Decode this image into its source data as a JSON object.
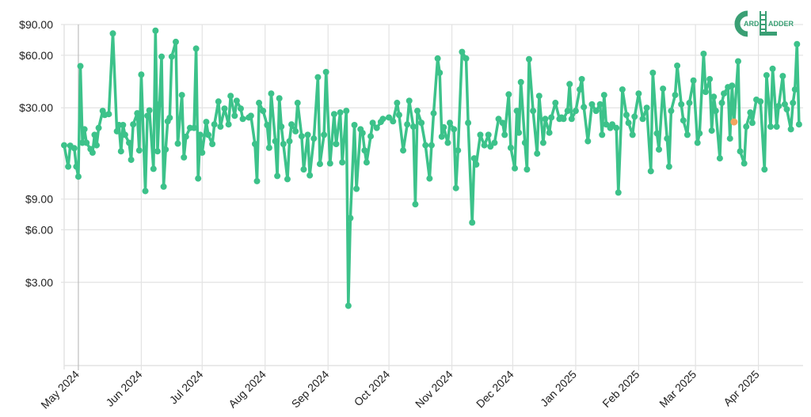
{
  "logo": {
    "text": "CARD LADDER"
  },
  "colors": {
    "line": "#3cc28a",
    "highlight": "#f2a55e",
    "grid": "#e3e3e3"
  },
  "chart_data": {
    "type": "line",
    "title": "",
    "xlabel": "",
    "ylabel": "",
    "y_scale": "log",
    "ylim": [
      1,
      90
    ],
    "xlim": [
      "2024-04-24",
      "2025-04-23"
    ],
    "grid": true,
    "legend": "none",
    "y_ticks": [
      {
        "value": 90,
        "label": "$90.00"
      },
      {
        "value": 60,
        "label": "$60.00"
      },
      {
        "value": 30,
        "label": "$30.00"
      },
      {
        "value": 9,
        "label": "$9.00"
      },
      {
        "value": 6,
        "label": "$6.00"
      },
      {
        "value": 3,
        "label": "$3.00"
      }
    ],
    "x_ticks": [
      {
        "date": "2024-05-01",
        "label": "May 2024"
      },
      {
        "date": "2024-06-01",
        "label": "Jun 2024"
      },
      {
        "date": "2024-07-01",
        "label": "Jul 2024"
      },
      {
        "date": "2024-08-01",
        "label": "Aug 2024"
      },
      {
        "date": "2024-09-01",
        "label": "Sep 2024"
      },
      {
        "date": "2024-10-01",
        "label": "Oct 2024"
      },
      {
        "date": "2024-11-01",
        "label": "Nov 2024"
      },
      {
        "date": "2024-12-01",
        "label": "Dec 2024"
      },
      {
        "date": "2025-01-01",
        "label": "Jan 2025"
      },
      {
        "date": "2025-02-01",
        "label": "Feb 2025"
      },
      {
        "date": "2025-03-01",
        "label": "Mar 2025"
      },
      {
        "date": "2025-04-01",
        "label": "Apr 2025"
      }
    ],
    "highlighted_point": {
      "date": "2025-03-20",
      "value": 24.9
    },
    "series": [
      {
        "points": [
          [
            "2024-04-24",
            18.3
          ],
          [
            "2024-04-26",
            13.8
          ],
          [
            "2024-04-27",
            18.2
          ],
          [
            "2024-04-29",
            17.6
          ],
          [
            "2024-04-30",
            13.8
          ],
          [
            "2024-05-01",
            12.1
          ],
          [
            "2024-05-02",
            52
          ],
          [
            "2024-05-03",
            18.9
          ],
          [
            "2024-05-04",
            22.6
          ],
          [
            "2024-05-05",
            18.9
          ],
          [
            "2024-05-07",
            17.4
          ],
          [
            "2024-05-08",
            16.6
          ],
          [
            "2024-05-09",
            21.0
          ],
          [
            "2024-05-10",
            18.3
          ],
          [
            "2024-05-11",
            23.0
          ],
          [
            "2024-05-13",
            28.8
          ],
          [
            "2024-05-14",
            27.3
          ],
          [
            "2024-05-16",
            27.6
          ],
          [
            "2024-05-18",
            80
          ],
          [
            "2024-05-20",
            22.0
          ],
          [
            "2024-05-21",
            23.9
          ],
          [
            "2024-05-22",
            16.9
          ],
          [
            "2024-05-23",
            23.9
          ],
          [
            "2024-05-24",
            21.0
          ],
          [
            "2024-05-26",
            18.9
          ],
          [
            "2024-05-27",
            15.1
          ],
          [
            "2024-05-28",
            24.1
          ],
          [
            "2024-05-30",
            27.9
          ],
          [
            "2024-05-31",
            17.1
          ],
          [
            "2024-06-01",
            46.5
          ],
          [
            "2024-06-03",
            10.0
          ],
          [
            "2024-06-04",
            27.0
          ],
          [
            "2024-06-05",
            29.0
          ],
          [
            "2024-06-07",
            13.4
          ],
          [
            "2024-06-08",
            83
          ],
          [
            "2024-06-09",
            16.9
          ],
          [
            "2024-06-10",
            31.4
          ],
          [
            "2024-06-11",
            58.9
          ],
          [
            "2024-06-12",
            10.6
          ],
          [
            "2024-06-13",
            17.3
          ],
          [
            "2024-06-14",
            25.1
          ],
          [
            "2024-06-15",
            26.3
          ],
          [
            "2024-06-16",
            58.9
          ],
          [
            "2024-06-18",
            71.6
          ],
          [
            "2024-06-19",
            18.7
          ],
          [
            "2024-06-21",
            35.5
          ],
          [
            "2024-06-22",
            15.6
          ],
          [
            "2024-06-23",
            20.5
          ],
          [
            "2024-06-25",
            23.0
          ],
          [
            "2024-06-27",
            23.0
          ],
          [
            "2024-06-28",
            65.5
          ],
          [
            "2024-06-29",
            11.8
          ],
          [
            "2024-06-30",
            21.0
          ],
          [
            "2024-07-01",
            16.6
          ],
          [
            "2024-07-03",
            24.9
          ],
          [
            "2024-07-04",
            21.0
          ],
          [
            "2024-07-06",
            18.6
          ],
          [
            "2024-07-07",
            24.1
          ],
          [
            "2024-07-09",
            32.6
          ],
          [
            "2024-07-10",
            23.4
          ],
          [
            "2024-07-12",
            29.7
          ],
          [
            "2024-07-14",
            24.1
          ],
          [
            "2024-07-15",
            35.1
          ],
          [
            "2024-07-17",
            27.0
          ],
          [
            "2024-07-18",
            32.9
          ],
          [
            "2024-07-20",
            29.7
          ],
          [
            "2024-07-21",
            25.9
          ],
          [
            "2024-07-24",
            26.4
          ],
          [
            "2024-07-25",
            27.0
          ],
          [
            "2024-07-27",
            18.6
          ],
          [
            "2024-07-28",
            11.4
          ],
          [
            "2024-07-29",
            32.0
          ],
          [
            "2024-07-31",
            28.8
          ],
          [
            "2024-08-02",
            23.9
          ],
          [
            "2024-08-03",
            17.7
          ],
          [
            "2024-08-04",
            36.2
          ],
          [
            "2024-08-06",
            19.3
          ],
          [
            "2024-08-07",
            12.2
          ],
          [
            "2024-08-08",
            34.0
          ],
          [
            "2024-08-09",
            23.4
          ],
          [
            "2024-08-10",
            18.6
          ],
          [
            "2024-08-12",
            11.7
          ],
          [
            "2024-08-13",
            19.3
          ],
          [
            "2024-08-14",
            24.1
          ],
          [
            "2024-08-16",
            22.0
          ],
          [
            "2024-08-17",
            32.0
          ],
          [
            "2024-08-19",
            20.6
          ],
          [
            "2024-08-20",
            13.3
          ],
          [
            "2024-08-22",
            21.0
          ],
          [
            "2024-08-23",
            12.3
          ],
          [
            "2024-08-25",
            20.0
          ],
          [
            "2024-08-27",
            44.9
          ],
          [
            "2024-08-28",
            14.3
          ],
          [
            "2024-08-30",
            21.0
          ],
          [
            "2024-08-31",
            48.1
          ],
          [
            "2024-09-02",
            14.4
          ],
          [
            "2024-09-04",
            27.6
          ],
          [
            "2024-09-05",
            18.6
          ],
          [
            "2024-09-07",
            28.2
          ],
          [
            "2024-09-08",
            14.6
          ],
          [
            "2024-09-10",
            28.8
          ],
          [
            "2024-09-11",
            2.2
          ],
          [
            "2024-09-12",
            7.0
          ],
          [
            "2024-09-14",
            23.9
          ],
          [
            "2024-09-15",
            10.3
          ],
          [
            "2024-09-17",
            22.6
          ],
          [
            "2024-09-18",
            21.5
          ],
          [
            "2024-09-19",
            17.1
          ],
          [
            "2024-09-20",
            14.6
          ],
          [
            "2024-09-22",
            20.6
          ],
          [
            "2024-09-23",
            24.6
          ],
          [
            "2024-09-25",
            23.0
          ],
          [
            "2024-09-27",
            24.9
          ],
          [
            "2024-09-28",
            25.9
          ],
          [
            "2024-10-01",
            26.4
          ],
          [
            "2024-10-03",
            25.1
          ],
          [
            "2024-10-05",
            32.0
          ],
          [
            "2024-10-06",
            27.3
          ],
          [
            "2024-10-08",
            17.1
          ],
          [
            "2024-10-10",
            24.1
          ],
          [
            "2024-10-11",
            32.9
          ],
          [
            "2024-10-13",
            23.4
          ],
          [
            "2024-10-14",
            8.4
          ],
          [
            "2024-10-15",
            28.8
          ],
          [
            "2024-10-17",
            24.6
          ],
          [
            "2024-10-19",
            18.3
          ],
          [
            "2024-10-21",
            11.8
          ],
          [
            "2024-10-22",
            18.3
          ],
          [
            "2024-10-23",
            27.9
          ],
          [
            "2024-10-25",
            57.5
          ],
          [
            "2024-10-26",
            47.6
          ],
          [
            "2024-10-27",
            20.5
          ],
          [
            "2024-10-28",
            23.2
          ],
          [
            "2024-10-30",
            18.9
          ],
          [
            "2024-10-31",
            24.6
          ],
          [
            "2024-11-02",
            22.6
          ],
          [
            "2024-11-03",
            10.4
          ],
          [
            "2024-11-04",
            17.1
          ],
          [
            "2024-11-06",
            62.7
          ],
          [
            "2024-11-08",
            57.5
          ],
          [
            "2024-11-09",
            24.6
          ],
          [
            "2024-11-11",
            6.6
          ],
          [
            "2024-11-12",
            15.4
          ],
          [
            "2024-11-13",
            14.2
          ],
          [
            "2024-11-15",
            21.0
          ],
          [
            "2024-11-17",
            18.3
          ],
          [
            "2024-11-19",
            21.0
          ],
          [
            "2024-11-20",
            18.0
          ],
          [
            "2024-11-22",
            18.9
          ],
          [
            "2024-11-24",
            25.9
          ],
          [
            "2024-11-26",
            24.6
          ],
          [
            "2024-11-27",
            21.0
          ],
          [
            "2024-11-29",
            35.8
          ],
          [
            "2024-11-30",
            17.7
          ],
          [
            "2024-12-02",
            13.5
          ],
          [
            "2024-12-03",
            28.8
          ],
          [
            "2024-12-04",
            21.6
          ],
          [
            "2024-12-05",
            42.1
          ],
          [
            "2024-12-07",
            18.9
          ],
          [
            "2024-12-08",
            13.3
          ],
          [
            "2024-12-09",
            57.0
          ],
          [
            "2024-12-11",
            28.8
          ],
          [
            "2024-12-13",
            16.4
          ],
          [
            "2024-12-14",
            35.1
          ],
          [
            "2024-12-16",
            18.9
          ],
          [
            "2024-12-17",
            25.9
          ],
          [
            "2024-12-19",
            21.6
          ],
          [
            "2024-12-20",
            26.4
          ],
          [
            "2024-12-22",
            32.0
          ],
          [
            "2024-12-24",
            25.9
          ],
          [
            "2024-12-25",
            26.4
          ],
          [
            "2024-12-26",
            25.9
          ],
          [
            "2024-12-28",
            28.8
          ],
          [
            "2024-12-29",
            41.0
          ],
          [
            "2024-12-30",
            25.9
          ],
          [
            "2025-01-01",
            28.8
          ],
          [
            "2025-01-03",
            38.2
          ],
          [
            "2025-01-04",
            43.8
          ],
          [
            "2025-01-05",
            30.3
          ],
          [
            "2025-01-07",
            19.3
          ],
          [
            "2025-01-09",
            31.4
          ],
          [
            "2025-01-11",
            28.8
          ],
          [
            "2025-01-13",
            31.4
          ],
          [
            "2025-01-14",
            21.0
          ],
          [
            "2025-01-15",
            35.5
          ],
          [
            "2025-01-16",
            24.1
          ],
          [
            "2025-01-18",
            23.0
          ],
          [
            "2025-01-19",
            24.1
          ],
          [
            "2025-01-21",
            23.0
          ],
          [
            "2025-01-22",
            9.8
          ],
          [
            "2025-01-24",
            38.2
          ],
          [
            "2025-01-26",
            27.3
          ],
          [
            "2025-01-27",
            24.6
          ],
          [
            "2025-01-29",
            21.0
          ],
          [
            "2025-01-30",
            26.7
          ],
          [
            "2025-02-01",
            36.2
          ],
          [
            "2025-02-03",
            25.9
          ],
          [
            "2025-02-05",
            30.0
          ],
          [
            "2025-02-07",
            13.0
          ],
          [
            "2025-02-08",
            47.6
          ],
          [
            "2025-02-10",
            21.4
          ],
          [
            "2025-02-11",
            17.3
          ],
          [
            "2025-02-13",
            38.6
          ],
          [
            "2025-02-15",
            20.0
          ],
          [
            "2025-02-16",
            13.8
          ],
          [
            "2025-02-17",
            28.8
          ],
          [
            "2025-02-19",
            35.5
          ],
          [
            "2025-02-20",
            52.3
          ],
          [
            "2025-02-22",
            31.4
          ],
          [
            "2025-02-23",
            25.4
          ],
          [
            "2025-02-25",
            21.0
          ],
          [
            "2025-02-26",
            32.0
          ],
          [
            "2025-02-28",
            43.0
          ],
          [
            "2025-03-02",
            18.9
          ],
          [
            "2025-03-03",
            21.4
          ],
          [
            "2025-03-05",
            61.2
          ],
          [
            "2025-03-06",
            37.0
          ],
          [
            "2025-03-08",
            43.8
          ],
          [
            "2025-03-09",
            22.2
          ],
          [
            "2025-03-10",
            34.7
          ],
          [
            "2025-03-11",
            28.8
          ],
          [
            "2025-03-13",
            15.4
          ],
          [
            "2025-03-14",
            32.0
          ],
          [
            "2025-03-15",
            36.2
          ],
          [
            "2025-03-17",
            39.4
          ],
          [
            "2025-03-18",
            20.0
          ],
          [
            "2025-03-19",
            40.2
          ],
          [
            "2025-03-20",
            24.9
          ],
          [
            "2025-03-22",
            55.4
          ],
          [
            "2025-03-23",
            16.9
          ],
          [
            "2025-03-25",
            14.4
          ],
          [
            "2025-03-26",
            23.4
          ],
          [
            "2025-03-28",
            28.2
          ],
          [
            "2025-03-29",
            24.6
          ],
          [
            "2025-03-31",
            33.4
          ],
          [
            "2025-04-02",
            32.6
          ],
          [
            "2025-04-04",
            13.3
          ],
          [
            "2025-04-05",
            46.1
          ],
          [
            "2025-04-07",
            23.4
          ],
          [
            "2025-04-08",
            50.2
          ],
          [
            "2025-04-10",
            23.4
          ],
          [
            "2025-04-11",
            30.7
          ],
          [
            "2025-04-13",
            45.6
          ],
          [
            "2025-04-14",
            31.4
          ],
          [
            "2025-04-15",
            29.4
          ],
          [
            "2025-04-17",
            22.6
          ],
          [
            "2025-04-18",
            32.0
          ],
          [
            "2025-04-19",
            38.2
          ],
          [
            "2025-04-20",
            69.5
          ],
          [
            "2025-04-21",
            24.1
          ]
        ]
      }
    ]
  }
}
